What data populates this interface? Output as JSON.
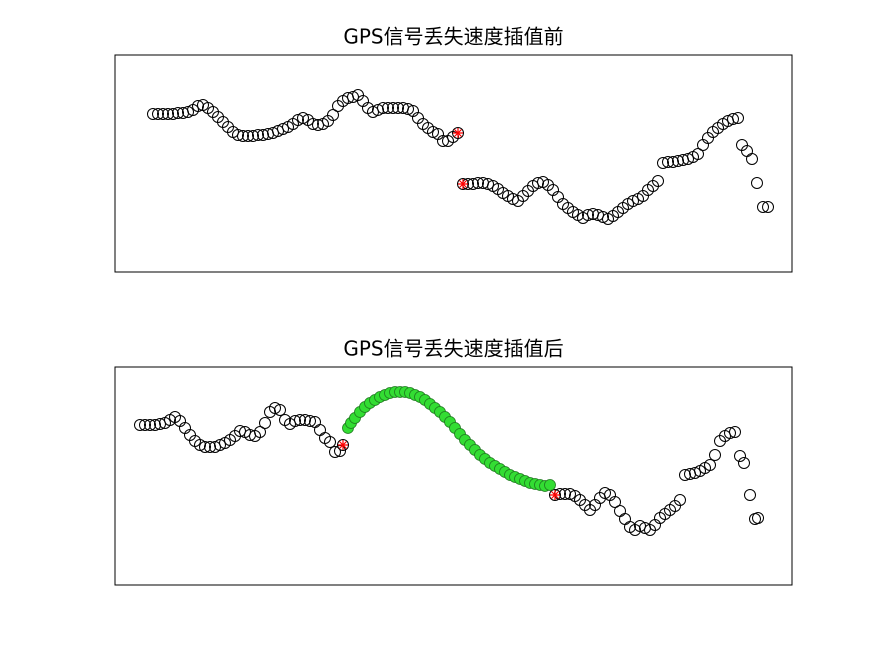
{
  "chart_data": [
    {
      "type": "scatter",
      "title": "GPS信号丢失速度插值前",
      "xlim": [
        0,
        677
      ],
      "ylim": [
        0,
        217
      ],
      "series": [
        {
          "color": "#000000",
          "marker": "circle",
          "x": [
            38,
            43,
            48,
            53,
            58,
            63,
            68,
            73,
            78,
            83,
            88,
            93,
            98,
            103,
            108,
            113,
            118,
            123,
            128,
            133,
            138,
            143,
            148,
            153,
            158,
            163,
            168,
            173,
            178,
            183,
            188,
            193,
            198,
            203,
            208,
            213,
            218,
            223,
            228,
            233,
            238,
            243,
            248,
            253,
            258,
            263,
            268,
            273,
            278,
            283,
            288,
            293,
            298,
            303,
            308,
            313,
            318,
            323,
            328,
            333,
            338,
            343,
            348,
            353,
            358,
            363,
            368,
            373,
            378,
            383,
            388,
            393,
            398,
            403,
            408,
            413,
            418,
            423,
            428,
            433,
            438,
            443,
            448,
            453,
            458,
            463,
            468,
            473,
            478,
            483,
            488,
            493,
            498,
            503,
            508,
            513,
            518,
            523,
            528,
            533,
            538,
            543,
            548,
            553,
            558,
            563,
            568,
            573,
            578,
            583,
            588,
            593,
            598,
            603,
            608,
            613,
            618,
            623,
            627,
            632,
            637,
            642,
            648,
            653
          ],
          "y": [
            158,
            158,
            158,
            158,
            158,
            159,
            159,
            160,
            162,
            166,
            167,
            164,
            160,
            155,
            150,
            145,
            140,
            137,
            136,
            136,
            136,
            137,
            137,
            138,
            139,
            141,
            143,
            145,
            148,
            152,
            154,
            152,
            148,
            147,
            148,
            151,
            157,
            166,
            171,
            174,
            175,
            177,
            171,
            164,
            160,
            162,
            164,
            164,
            164,
            164,
            164,
            163,
            161,
            154,
            148,
            144,
            140,
            138,
            131,
            131,
            135,
            139,
            88,
            88,
            88,
            89,
            89,
            88,
            86,
            83,
            79,
            76,
            73,
            71,
            76,
            81,
            86,
            89,
            90,
            87,
            82,
            75,
            68,
            64,
            60,
            57,
            54,
            57,
            58,
            57,
            55,
            53,
            56,
            60,
            64,
            68,
            71,
            73,
            76,
            82,
            86,
            91,
            109,
            110,
            110,
            111,
            112,
            113,
            115,
            118,
            127,
            134,
            140,
            144,
            148,
            151,
            153,
            154,
            127,
            121,
            113,
            89,
            65,
            65
          ]
        },
        {
          "color": "#ff0000",
          "marker": "asterisk",
          "x": [
            343,
            348
          ],
          "y": [
            139,
            88
          ]
        }
      ]
    },
    {
      "type": "scatter",
      "title": "GPS信号丢失速度插值后",
      "xlim": [
        0,
        677
      ],
      "ylim": [
        0,
        218
      ],
      "series": [
        {
          "color": "#000000",
          "marker": "circle",
          "x": [
            25,
            30,
            35,
            40,
            45,
            50,
            55,
            60,
            65,
            70,
            75,
            80,
            85,
            90,
            95,
            100,
            105,
            110,
            115,
            120,
            125,
            130,
            135,
            140,
            145,
            150,
            155,
            160,
            165,
            170,
            175,
            180,
            185,
            190,
            195,
            200,
            205,
            210,
            215,
            220,
            225,
            228,
            440,
            445,
            450,
            455,
            460,
            465,
            470,
            475,
            480,
            485,
            490,
            495,
            500,
            505,
            510,
            515,
            520,
            525,
            530,
            535,
            540,
            545,
            550,
            555,
            560,
            565,
            570,
            575,
            580,
            585,
            590,
            595,
            600,
            605,
            610,
            615,
            620,
            625,
            629,
            635,
            640,
            643
          ],
          "y": [
            160,
            160,
            160,
            160,
            161,
            162,
            165,
            168,
            164,
            157,
            150,
            144,
            140,
            138,
            138,
            138,
            140,
            142,
            145,
            149,
            154,
            153,
            150,
            149,
            153,
            162,
            173,
            177,
            175,
            165,
            161,
            164,
            165,
            165,
            164,
            163,
            155,
            147,
            143,
            133,
            134,
            140,
            90,
            91,
            91,
            91,
            89,
            85,
            80,
            75,
            80,
            87,
            92,
            90,
            83,
            74,
            66,
            58,
            55,
            59,
            57,
            55,
            60,
            67,
            71,
            75,
            79,
            85,
            110,
            111,
            112,
            114,
            117,
            120,
            130,
            144,
            149,
            152,
            153,
            129,
            122,
            90,
            66,
            67
          ]
        },
        {
          "color": "#33dd33",
          "marker": "filled-circle",
          "x": [
            233,
            236,
            240,
            245,
            250,
            255,
            260,
            265,
            270,
            275,
            280,
            285,
            290,
            295,
            300,
            305,
            310,
            315,
            320,
            325,
            330,
            335,
            340,
            345,
            350,
            355,
            360,
            365,
            370,
            375,
            380,
            385,
            390,
            395,
            400,
            405,
            410,
            415,
            420,
            425,
            430,
            435
          ],
          "y": [
            157,
            162,
            167,
            173,
            178,
            182,
            185,
            188,
            190,
            192,
            193,
            193,
            193,
            192,
            190,
            188,
            185,
            181,
            177,
            173,
            168,
            163,
            157,
            151,
            145,
            140,
            135,
            130,
            126,
            122,
            119,
            116,
            113,
            110,
            108,
            106,
            104,
            102,
            101,
            100,
            99,
            100
          ]
        },
        {
          "color": "#ff0000",
          "marker": "asterisk",
          "x": [
            228,
            440
          ],
          "y": [
            140,
            90
          ]
        }
      ]
    }
  ]
}
